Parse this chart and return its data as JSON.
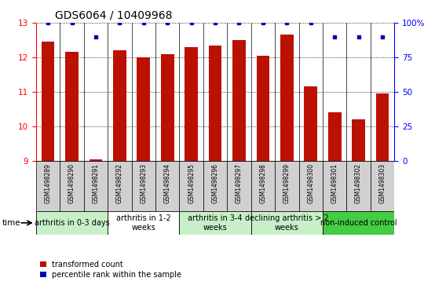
{
  "title": "GDS6064 / 10409968",
  "samples": [
    "GSM1498289",
    "GSM1498290",
    "GSM1498291",
    "GSM1498292",
    "GSM1498293",
    "GSM1498294",
    "GSM1498295",
    "GSM1498296",
    "GSM1498297",
    "GSM1498298",
    "GSM1498299",
    "GSM1498300",
    "GSM1498301",
    "GSM1498302",
    "GSM1498303"
  ],
  "red_values": [
    12.45,
    12.15,
    9.05,
    12.2,
    12.0,
    12.1,
    12.3,
    12.35,
    12.5,
    12.05,
    12.65,
    11.15,
    10.4,
    10.2,
    10.95
  ],
  "blue_values": [
    100,
    100,
    90,
    100,
    100,
    100,
    100,
    100,
    100,
    100,
    100,
    100,
    90,
    90,
    90
  ],
  "ylim_left": [
    9,
    13
  ],
  "ylim_right": [
    0,
    100
  ],
  "yticks_left": [
    9,
    10,
    11,
    12,
    13
  ],
  "yticks_right": [
    0,
    25,
    50,
    75,
    100
  ],
  "groups": [
    {
      "label": "arthritis in 0-3 days",
      "start": 0,
      "end": 3,
      "color": "#c8f0c8"
    },
    {
      "label": "arthritis in 1-2\nweeks",
      "start": 3,
      "end": 6,
      "color": "#ffffff"
    },
    {
      "label": "arthritis in 3-4\nweeks",
      "start": 6,
      "end": 9,
      "color": "#c8f0c8"
    },
    {
      "label": "declining arthritis > 2\nweeks",
      "start": 9,
      "end": 12,
      "color": "#c8f0c8"
    },
    {
      "label": "non-induced control",
      "start": 12,
      "end": 15,
      "color": "#44cc44"
    }
  ],
  "bar_color": "#bb1100",
  "dot_color": "#0000bb",
  "title_fontsize": 10,
  "tick_fontsize": 7.5,
  "sample_fontsize": 5.5,
  "group_fontsize": 7,
  "legend_fontsize": 7
}
